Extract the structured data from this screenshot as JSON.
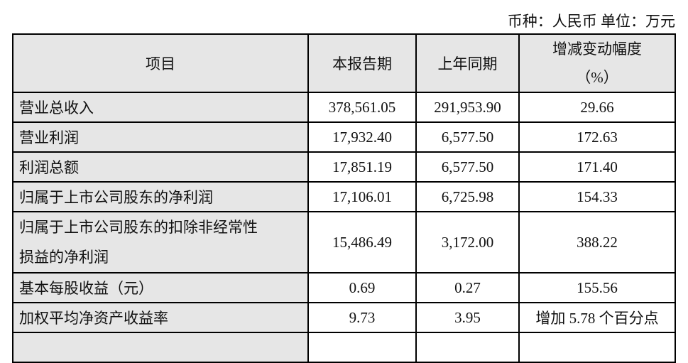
{
  "unit_note": "币种：人民币 单位：万元",
  "headers": [
    "项目",
    "本报告期",
    "上年同期",
    "增减变动幅度",
    "（%）"
  ],
  "rows": [
    {
      "item": "营业总收入",
      "current": "378,561.05",
      "prior": "291,953.90",
      "change": "29.66"
    },
    {
      "item": "营业利润",
      "current": "17,932.40",
      "prior": "6,577.50",
      "change": "172.63"
    },
    {
      "item": "利润总额",
      "current": "17,851.19",
      "prior": "6,577.50",
      "change": "171.40"
    },
    {
      "item": "归属于上市公司股东的净利润",
      "current": "17,106.01",
      "prior": "6,725.98",
      "change": "154.33"
    },
    {
      "item": "归属于上市公司股东的扣除非经常性",
      "item2": "损益的净利润",
      "current": "15,486.49",
      "prior": "3,172.00",
      "change": "388.22"
    },
    {
      "item": "基本每股收益（元）",
      "current": "0.69",
      "prior": "0.27",
      "change": "155.56"
    },
    {
      "item": "加权平均净资产收益率",
      "current": "9.73",
      "prior": "3.95",
      "change": "增加 5.78 个百分点"
    }
  ]
}
